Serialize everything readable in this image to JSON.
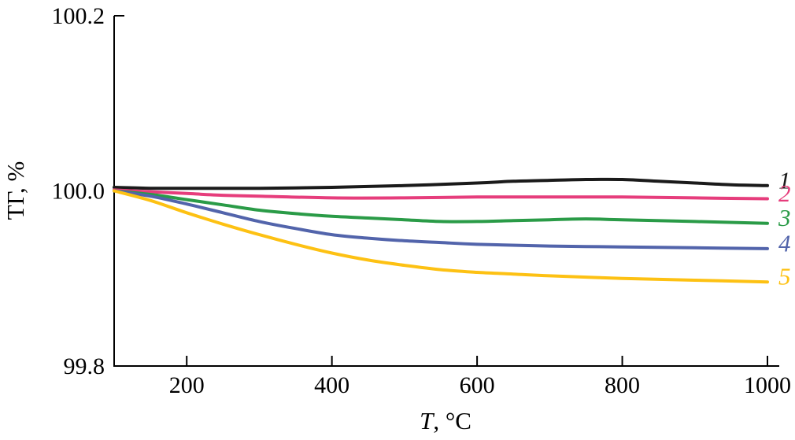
{
  "figure": {
    "background_color": "#ffffff",
    "axis_color": "#000000"
  },
  "chart_data": {
    "type": "line",
    "title": "",
    "xlabel": "T, °C",
    "xlabel_italic": "T",
    "xlabel_rest": ", °C",
    "ylabel": "ТГ, %",
    "xlim": [
      100,
      1000
    ],
    "ylim": [
      99.8,
      100.2
    ],
    "xticks": [
      200,
      400,
      600,
      800,
      1000
    ],
    "xtick_labels": [
      "200",
      "400",
      "600",
      "800",
      "1000"
    ],
    "yticks": [
      99.8,
      100.0,
      100.2
    ],
    "ytick_labels": [
      "99.8",
      "100.0",
      "100.2"
    ],
    "grid": false,
    "legend_position": "right-end-labels",
    "series": [
      {
        "name": "1",
        "color": "#1a1a1a",
        "x": [
          100,
          150,
          200,
          300,
          400,
          500,
          600,
          650,
          700,
          750,
          800,
          850,
          900,
          950,
          1000
        ],
        "y": [
          100.004,
          100.003,
          100.003,
          100.003,
          100.004,
          100.006,
          100.009,
          100.011,
          100.012,
          100.013,
          100.013,
          100.011,
          100.009,
          100.007,
          100.006
        ]
      },
      {
        "name": "2",
        "color": "#e63d7c",
        "x": [
          100,
          150,
          200,
          250,
          300,
          400,
          500,
          600,
          700,
          800,
          900,
          1000
        ],
        "y": [
          100.001,
          99.999,
          99.997,
          99.995,
          99.994,
          99.992,
          99.992,
          99.993,
          99.993,
          99.993,
          99.992,
          99.991
        ]
      },
      {
        "name": "3",
        "color": "#2a9b47",
        "x": [
          100,
          150,
          200,
          250,
          300,
          350,
          400,
          450,
          500,
          550,
          600,
          650,
          700,
          750,
          800,
          900,
          1000
        ],
        "y": [
          100.0,
          99.996,
          99.99,
          99.984,
          99.978,
          99.974,
          99.971,
          99.969,
          99.967,
          99.965,
          99.965,
          99.966,
          99.967,
          99.968,
          99.967,
          99.965,
          99.963
        ]
      },
      {
        "name": "4",
        "color": "#5264ab",
        "x": [
          100,
          150,
          200,
          250,
          300,
          350,
          400,
          450,
          500,
          550,
          600,
          700,
          800,
          900,
          1000
        ],
        "y": [
          100.0,
          99.994,
          99.985,
          99.975,
          99.965,
          99.957,
          99.95,
          99.946,
          99.943,
          99.941,
          99.939,
          99.937,
          99.936,
          99.935,
          99.934
        ]
      },
      {
        "name": "5",
        "color": "#fdc113",
        "x": [
          100,
          150,
          200,
          250,
          300,
          350,
          400,
          450,
          500,
          550,
          600,
          650,
          700,
          800,
          900,
          1000
        ],
        "y": [
          100.0,
          99.989,
          99.975,
          99.962,
          99.95,
          99.939,
          99.929,
          99.921,
          99.915,
          99.91,
          99.907,
          99.905,
          99.903,
          99.9,
          99.898,
          99.896
        ]
      }
    ]
  }
}
